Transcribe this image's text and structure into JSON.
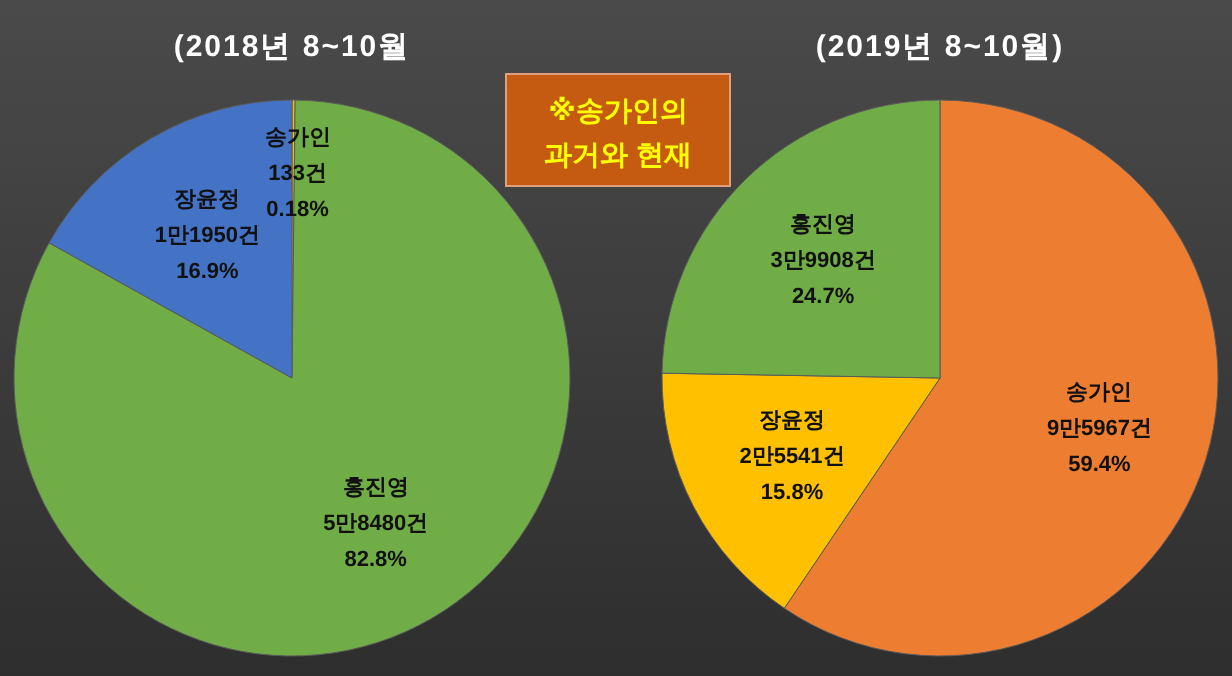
{
  "chart_data": [
    {
      "type": "pie",
      "title": "(2018년 8~10월",
      "categories": [
        "송가인",
        "홍진영",
        "장윤정"
      ],
      "values": [
        0.18,
        82.8,
        16.9
      ],
      "colors": [
        "#ffc000",
        "#70ad47",
        "#4472c4"
      ],
      "value_labels": [
        "133건\n0.18%",
        "5만8480건\n82.8%",
        "1만1950건\n16.9%"
      ],
      "annotations": [
        "※송가인의\n과거와 현재"
      ]
    },
    {
      "type": "pie",
      "title": "(2019년 8~10월)",
      "categories": [
        "송가인",
        "장윤정",
        "홍진영"
      ],
      "values": [
        59.4,
        15.8,
        24.7
      ],
      "colors": [
        "#ed7d31",
        "#ffc000",
        "#70ad47"
      ],
      "value_labels": [
        "9만5967건\n59.4%",
        "2만5541건\n15.8%",
        "3만9908건\n24.7%"
      ]
    }
  ]
}
